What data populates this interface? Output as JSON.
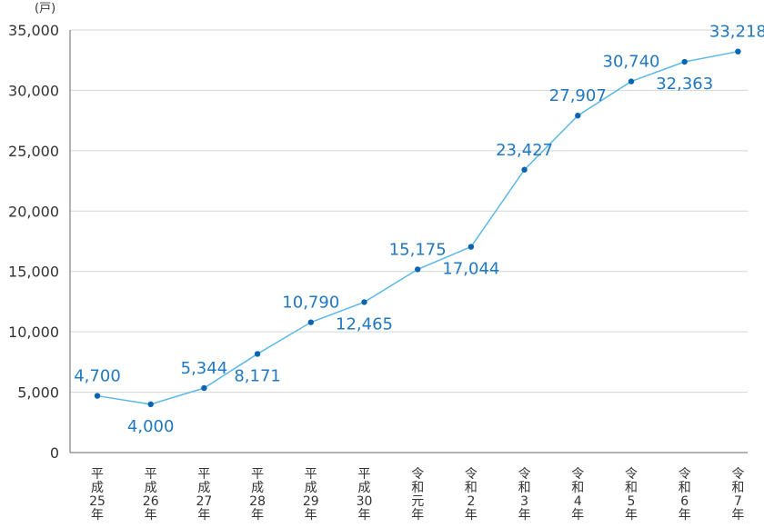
{
  "chart_data": {
    "type": "line",
    "y_unit": "(戸)",
    "categories": [
      [
        "平",
        "成",
        "25",
        "年"
      ],
      [
        "平",
        "成",
        "26",
        "年"
      ],
      [
        "平",
        "成",
        "27",
        "年"
      ],
      [
        "平",
        "成",
        "28",
        "年"
      ],
      [
        "平",
        "成",
        "29",
        "年"
      ],
      [
        "平",
        "成",
        "30",
        "年"
      ],
      [
        "令",
        "和",
        "元",
        "年"
      ],
      [
        "令",
        "和",
        "2",
        "年"
      ],
      [
        "令",
        "和",
        "3",
        "年"
      ],
      [
        "令",
        "和",
        "4",
        "年"
      ],
      [
        "令",
        "和",
        "5",
        "年"
      ],
      [
        "令",
        "和",
        "6",
        "年"
      ],
      [
        "令",
        "和",
        "7",
        "年"
      ]
    ],
    "values": [
      4700,
      4000,
      5344,
      8171,
      10790,
      12465,
      15175,
      17044,
      23427,
      27907,
      30740,
      32363,
      33218
    ],
    "value_labels": [
      "4,700",
      "4,000",
      "5,344",
      "8,171",
      "10,790",
      "12,465",
      "15,175",
      "17,044",
      "23,427",
      "27,907",
      "30,740",
      "32,363",
      "33,218"
    ],
    "label_position": [
      "above",
      "below",
      "above",
      "below",
      "above",
      "below",
      "above",
      "below",
      "above",
      "above",
      "above",
      "below",
      "above"
    ],
    "yticks": [
      0,
      5000,
      10000,
      15000,
      20000,
      25000,
      30000,
      35000
    ],
    "ytick_labels": [
      "0",
      "5,000",
      "10,000",
      "15,000",
      "20,000",
      "25,000",
      "30,000",
      "35,000"
    ],
    "ylim": [
      0,
      35000
    ],
    "grid": true,
    "colors": {
      "line": "#5bb8e8",
      "marker": "#0a64b0",
      "label": "#1f78c1",
      "grid": "#d5d5d5",
      "axis": "#666666"
    }
  }
}
